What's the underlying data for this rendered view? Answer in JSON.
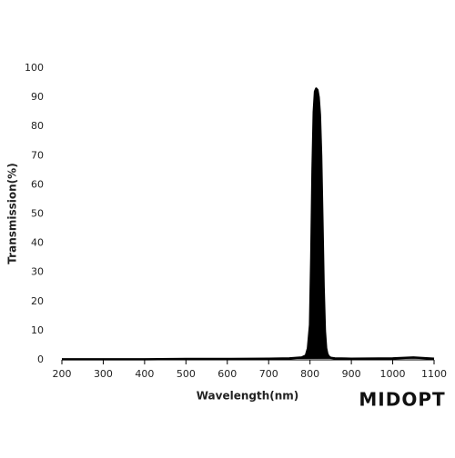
{
  "chart_data": {
    "type": "line",
    "x_label": "Wavelength(nm)",
    "y_label": "Transmission(%)",
    "logo": "MIDOPT",
    "color": "#000000",
    "xlim": [
      200,
      1100
    ],
    "ylim": [
      0,
      100
    ],
    "xticks": [
      200,
      300,
      400,
      500,
      600,
      700,
      800,
      900,
      1000,
      1100
    ],
    "yticks": [
      0,
      10,
      20,
      30,
      40,
      50,
      60,
      70,
      80,
      90,
      100
    ],
    "x": [
      200,
      300,
      400,
      500,
      600,
      700,
      750,
      780,
      790,
      795,
      800,
      803,
      806,
      809,
      812,
      815,
      818,
      821,
      824,
      827,
      830,
      833,
      836,
      839,
      842,
      845,
      850,
      860,
      900,
      1000,
      1050,
      1100
    ],
    "values": [
      0.2,
      0.2,
      0.2,
      0.3,
      0.3,
      0.4,
      0.5,
      0.8,
      1.5,
      4,
      12,
      35,
      65,
      85,
      92,
      93,
      92.5,
      90,
      84,
      70,
      48,
      25,
      10,
      4,
      2,
      1.2,
      0.7,
      0.5,
      0.4,
      0.5,
      0.8,
      0.4
    ]
  }
}
